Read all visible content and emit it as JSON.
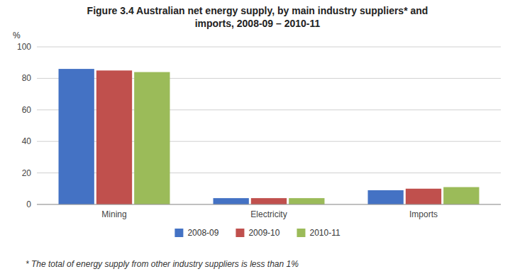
{
  "chart_data": {
    "type": "bar",
    "title": "Figure 3.4 Australian net energy supply, by main industry suppliers* and\nimports, 2008-09 – 2010-11",
    "ylabel": "%",
    "annotations": [
      "* The total of energy supply from other industry suppliers is less than 1%"
    ],
    "categories": [
      "Mining",
      "Electricity",
      "Imports"
    ],
    "series": [
      {
        "name": "2008-09",
        "color": "#4472C4",
        "values": [
          86,
          4,
          9
        ]
      },
      {
        "name": "2009-10",
        "color": "#C0504D",
        "values": [
          85,
          4,
          10
        ]
      },
      {
        "name": "2010-11",
        "color": "#9BBB59",
        "values": [
          84,
          4,
          11
        ]
      }
    ],
    "ylim": [
      0,
      100
    ],
    "yticks": [
      0,
      20,
      40,
      60,
      80,
      100
    ],
    "grid": true,
    "legend": "bottom"
  }
}
